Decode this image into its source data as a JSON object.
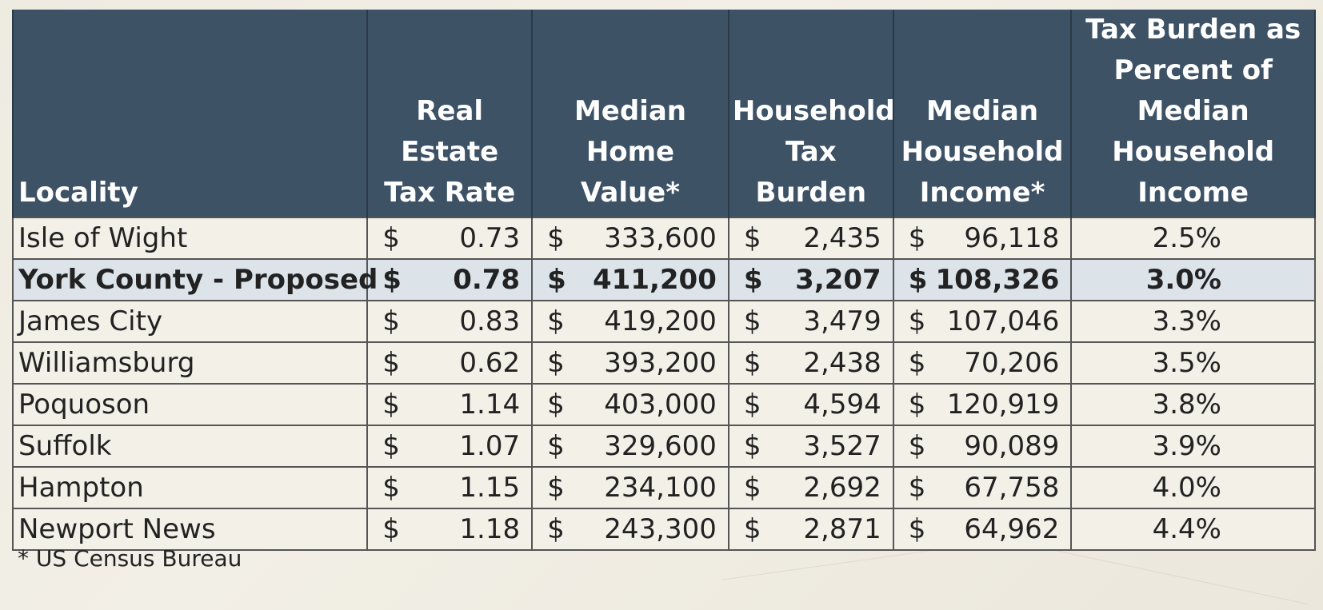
{
  "columns": [
    "Locality",
    "Real Estate Tax Rate",
    "Median Home Value*",
    "Household Tax Burden",
    "Median Household Income*",
    "Tax Burden as Percent of Median Household Income"
  ],
  "header_lines": {
    "locality": [
      "Locality"
    ],
    "rate": [
      "Real Estate",
      "Tax Rate"
    ],
    "home": [
      "Median",
      "Home Value*"
    ],
    "burden": [
      "Household",
      "Tax Burden"
    ],
    "income": [
      "Median",
      "Household",
      "Income*"
    ],
    "pct": [
      "Tax Burden as",
      "Percent of",
      "Median",
      "Household",
      "Income"
    ]
  },
  "currency_symbol": "$",
  "rows": [
    {
      "locality": "Isle of Wight",
      "rate": "0.73",
      "home": "333,600",
      "burden": "2,435",
      "income": "96,118",
      "pct": "2.5%",
      "highlight": false
    },
    {
      "locality": "York County - Proposed",
      "rate": "0.78",
      "home": "411,200",
      "burden": "3,207",
      "income": "108,326",
      "pct": "3.0%",
      "highlight": true
    },
    {
      "locality": "James City",
      "rate": "0.83",
      "home": "419,200",
      "burden": "3,479",
      "income": "107,046",
      "pct": "3.3%",
      "highlight": false
    },
    {
      "locality": "Williamsburg",
      "rate": "0.62",
      "home": "393,200",
      "burden": "2,438",
      "income": "70,206",
      "pct": "3.5%",
      "highlight": false
    },
    {
      "locality": "Poquoson",
      "rate": "1.14",
      "home": "403,000",
      "burden": "4,594",
      "income": "120,919",
      "pct": "3.8%",
      "highlight": false
    },
    {
      "locality": "Suffolk",
      "rate": "1.07",
      "home": "329,600",
      "burden": "3,527",
      "income": "90,089",
      "pct": "3.9%",
      "highlight": false
    },
    {
      "locality": "Hampton",
      "rate": "1.15",
      "home": "234,100",
      "burden": "2,692",
      "income": "67,758",
      "pct": "4.0%",
      "highlight": false
    },
    {
      "locality": "Newport News",
      "rate": "1.18",
      "home": "243,300",
      "burden": "2,871",
      "income": "64,962",
      "pct": "4.4%",
      "highlight": false
    }
  ],
  "footnote": "* US Census Bureau",
  "colors": {
    "header_bg": "#3d5265",
    "highlight_bg": "#dce4ea"
  }
}
